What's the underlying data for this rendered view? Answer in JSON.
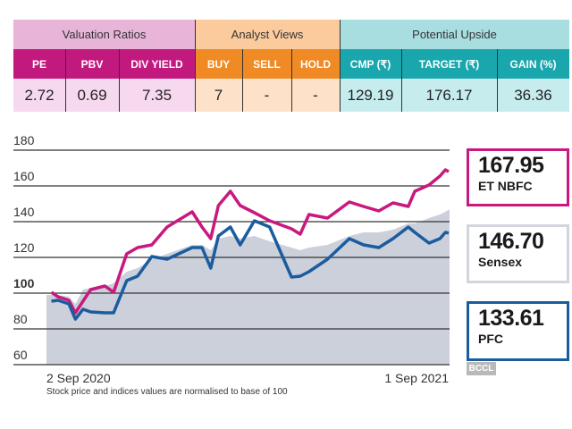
{
  "table": {
    "sections": [
      {
        "title": "Valuation Ratios",
        "header_color": "#e8b5d9",
        "label_color": "#c2197f",
        "value_color": "#f6d9ee",
        "columns": [
          {
            "label": "PE",
            "value": "2.72"
          },
          {
            "label": "PBV",
            "value": "0.69"
          },
          {
            "label": "DIV YIELD",
            "value": "7.35"
          }
        ]
      },
      {
        "title": "Analyst Views",
        "header_color": "#fbcb9d",
        "label_color": "#f08a24",
        "value_color": "#fde2c9",
        "columns": [
          {
            "label": "BUY",
            "value": "7"
          },
          {
            "label": "SELL",
            "value": "-"
          },
          {
            "label": "HOLD",
            "value": "-"
          }
        ]
      },
      {
        "title": "Potential Upside",
        "header_color": "#a9dee1",
        "label_color": "#19a7ad",
        "value_color": "#c7ecee",
        "columns": [
          {
            "label": "CMP (₹)",
            "value": "129.19"
          },
          {
            "label": "TARGET (₹)",
            "value": "176.17"
          },
          {
            "label": "GAIN (%)",
            "value": "36.36"
          }
        ]
      }
    ]
  },
  "chart_data": {
    "type": "line",
    "xlabel": "",
    "ylabel": "",
    "ylim": [
      60,
      180
    ],
    "yticks": [
      "60",
      "80",
      "100",
      "120",
      "140",
      "160",
      "180"
    ],
    "xtick_labels": [
      "2 Sep 2020",
      "1 Sep 2021"
    ],
    "xlim": [
      "2020-09-02",
      "2021-09-01"
    ],
    "grid": true,
    "legend": "right",
    "x": [
      "2020-09-02",
      "2020-09-08",
      "2020-09-18",
      "2020-09-24",
      "2020-10-01",
      "2020-10-08",
      "2020-10-21",
      "2020-10-29",
      "2020-11-10",
      "2020-11-20",
      "2020-12-03",
      "2020-12-17",
      "2021-01-09",
      "2021-01-18",
      "2021-01-26",
      "2021-02-02",
      "2021-02-13",
      "2021-02-22",
      "2021-03-07",
      "2021-03-21",
      "2021-04-10",
      "2021-04-18",
      "2021-04-26",
      "2021-05-13",
      "2021-06-02",
      "2021-06-15",
      "2021-06-29",
      "2021-07-12",
      "2021-07-26",
      "2021-08-01",
      "2021-08-14",
      "2021-08-24",
      "2021-08-29",
      "2021-09-01"
    ],
    "series": [
      {
        "name": "Sensex",
        "last_value": "146.70",
        "color": "#ccd0db",
        "style": "area",
        "values": [
          99,
          99,
          98,
          94,
          102,
          103,
          104,
          105.5,
          112,
          114,
          119,
          122,
          127,
          127,
          124,
          130.5,
          132,
          130.5,
          132,
          129,
          125.5,
          124,
          125.5,
          127,
          132,
          134,
          134,
          135.5,
          139,
          139,
          142,
          144,
          145.5,
          146.7
        ]
      },
      {
        "name": "ET NBFC",
        "last_value": "167.95",
        "color": "#c8197f",
        "style": "line",
        "values": [
          100.5,
          98,
          96,
          89,
          95.5,
          102,
          104,
          100.5,
          122,
          125.5,
          127,
          137,
          145.5,
          137,
          130.5,
          149,
          157,
          149,
          145,
          140.5,
          136,
          133,
          144,
          142,
          151,
          148.5,
          146,
          150.5,
          148.5,
          157,
          160.5,
          165.5,
          169,
          167.95
        ]
      },
      {
        "name": "PFC",
        "last_value": "133.61",
        "color": "#1b5c9e",
        "style": "line",
        "values": [
          95.5,
          96,
          94,
          85.5,
          91,
          89.5,
          89,
          89,
          107,
          109.5,
          120.5,
          119,
          125.5,
          125.5,
          114,
          132,
          137,
          127,
          140.5,
          137,
          109,
          109.5,
          112,
          119,
          130.5,
          127,
          125.5,
          130.5,
          137,
          134,
          128,
          130.5,
          134,
          133.61
        ]
      }
    ],
    "note": "Stock price and indices values are normalised to base of 100"
  },
  "credit": "BCCL"
}
